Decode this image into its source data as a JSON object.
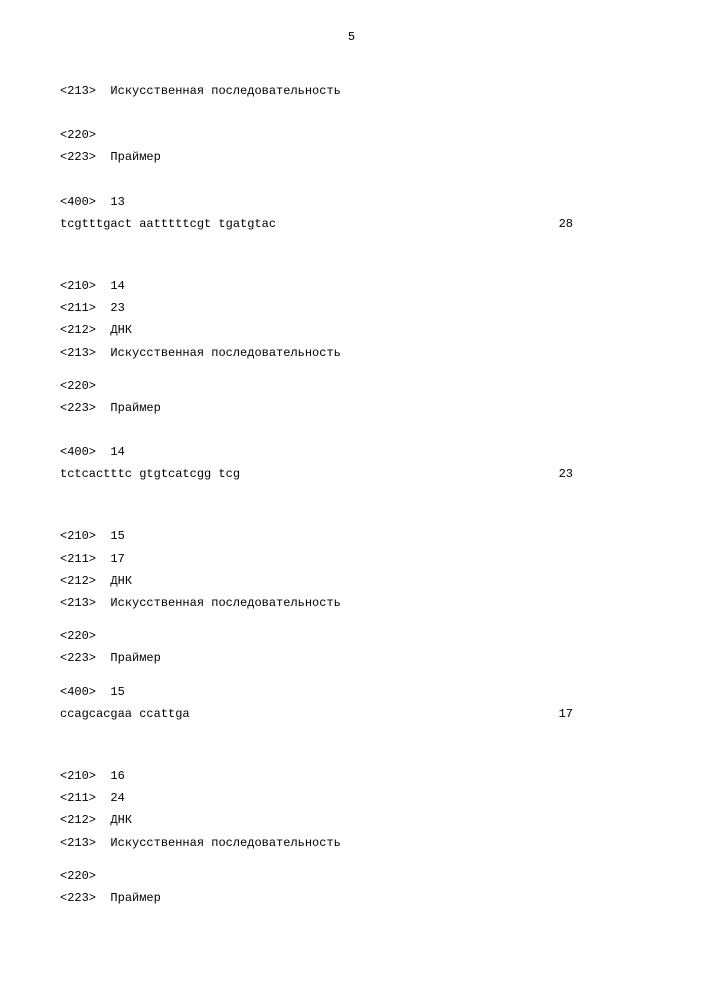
{
  "page_number": "5",
  "entries": [
    {
      "header": [
        {
          "tag": "<213>",
          "value": "Искусственная последовательность"
        }
      ],
      "feature": [
        {
          "tag": "<220>",
          "value": ""
        },
        {
          "tag": "<223>",
          "value": "Праймер"
        }
      ],
      "seq_header": {
        "tag": "<400>",
        "value": "13"
      },
      "sequence": "tcgtttgact aatttttcgt tgatgtac",
      "length": "28"
    },
    {
      "header": [
        {
          "tag": "<210>",
          "value": "14"
        },
        {
          "tag": "<211>",
          "value": "23"
        },
        {
          "tag": "<212>",
          "value": "ДНК"
        },
        {
          "tag": "<213>",
          "value": "Искусственная последовательность"
        }
      ],
      "feature": [
        {
          "tag": "<220>",
          "value": ""
        },
        {
          "tag": "<223>",
          "value": "Праймер"
        }
      ],
      "seq_header": {
        "tag": "<400>",
        "value": "14"
      },
      "sequence": "tctcactttc gtgtcatcgg tcg",
      "length": "23"
    },
    {
      "header": [
        {
          "tag": "<210>",
          "value": "15"
        },
        {
          "tag": "<211>",
          "value": "17"
        },
        {
          "tag": "<212>",
          "value": "ДНК"
        },
        {
          "tag": "<213>",
          "value": "Искусственная последовательность"
        }
      ],
      "feature": [
        {
          "tag": "<220>",
          "value": ""
        },
        {
          "tag": "<223>",
          "value": "Праймер"
        }
      ],
      "seq_header": {
        "tag": "<400>",
        "value": "15"
      },
      "sequence": "ccagcacgaa ccattga",
      "length": "17"
    },
    {
      "header": [
        {
          "tag": "<210>",
          "value": "16"
        },
        {
          "tag": "<211>",
          "value": "24"
        },
        {
          "tag": "<212>",
          "value": "ДНК"
        },
        {
          "tag": "<213>",
          "value": "Искусственная последовательность"
        }
      ],
      "feature": [
        {
          "tag": "<220>",
          "value": ""
        },
        {
          "tag": "<223>",
          "value": "Праймер"
        }
      ]
    }
  ]
}
